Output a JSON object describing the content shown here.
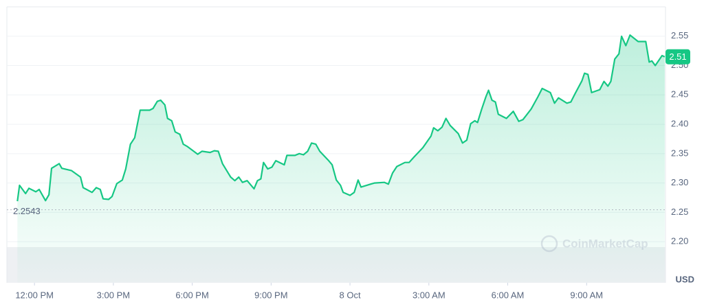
{
  "chart_data": {
    "type": "line",
    "color": "#16c784",
    "currency": "USD",
    "watermark": "CoinMarketCap",
    "reference_line": 2.2543,
    "current_price_label": "2.51",
    "x": [
      -0.65,
      -0.57,
      -0.34,
      -0.21,
      0.05,
      0.18,
      0.42,
      0.55,
      0.65,
      0.94,
      1.04,
      1.41,
      1.75,
      1.85,
      2.19,
      2.35,
      2.5,
      2.61,
      2.82,
      2.95,
      3.13,
      3.34,
      3.47,
      3.65,
      3.81,
      4.02,
      4.38,
      4.51,
      4.67,
      4.8,
      4.96,
      5.06,
      5.22,
      5.35,
      5.53,
      5.66,
      5.82,
      6.0,
      6.21,
      6.37,
      6.68,
      6.84,
      6.99,
      7.15,
      7.46,
      7.62,
      7.77,
      7.91,
      8.09,
      8.35,
      8.48,
      8.61,
      8.71,
      8.87,
      9.03,
      9.18,
      9.5,
      9.6,
      9.91,
      10.07,
      10.23,
      10.39,
      10.54,
      10.7,
      10.85,
      11.17,
      11.32,
      11.48,
      11.64,
      11.74,
      12.0,
      12.16,
      12.31,
      12.42,
      12.78,
      12.94,
      13.31,
      13.46,
      13.62,
      13.78,
      14.09,
      14.25,
      14.45,
      14.77,
      15.08,
      15.18,
      15.34,
      15.5,
      15.65,
      15.81,
      16.12,
      16.28,
      16.44,
      16.59,
      16.75,
      16.85,
      17.01,
      17.17,
      17.27,
      17.4,
      17.53,
      17.64,
      17.95,
      18.21,
      18.42,
      18.58,
      18.89,
      19.15,
      19.31,
      19.62,
      19.78,
      19.93,
      20.25,
      20.4,
      20.56,
      20.82,
      20.92,
      21.05,
      21.19,
      21.5,
      21.66,
      21.81,
      21.92,
      22.07,
      22.23,
      22.33,
      22.49,
      22.65,
      22.96,
      23.25,
      23.38,
      23.48,
      23.61,
      23.87,
      23.97
    ],
    "values": [
      2.269,
      2.296,
      2.282,
      2.291,
      2.285,
      2.289,
      2.27,
      2.28,
      2.325,
      2.333,
      2.325,
      2.321,
      2.31,
      2.292,
      2.284,
      2.292,
      2.289,
      2.273,
      2.272,
      2.277,
      2.299,
      2.305,
      2.324,
      2.366,
      2.377,
      2.424,
      2.424,
      2.427,
      2.439,
      2.441,
      2.433,
      2.41,
      2.406,
      2.387,
      2.383,
      2.366,
      2.362,
      2.356,
      2.349,
      2.354,
      2.352,
      2.355,
      2.354,
      2.333,
      2.31,
      2.304,
      2.31,
      2.301,
      2.304,
      2.29,
      2.304,
      2.307,
      2.335,
      2.324,
      2.327,
      2.338,
      2.331,
      2.347,
      2.347,
      2.35,
      2.348,
      2.354,
      2.368,
      2.366,
      2.354,
      2.339,
      2.331,
      2.305,
      2.296,
      2.284,
      2.279,
      2.284,
      2.305,
      2.293,
      2.298,
      2.3,
      2.301,
      2.298,
      2.317,
      2.328,
      2.335,
      2.335,
      2.345,
      2.36,
      2.38,
      2.394,
      2.389,
      2.395,
      2.41,
      2.398,
      2.384,
      2.368,
      2.373,
      2.401,
      2.406,
      2.403,
      2.426,
      2.447,
      2.458,
      2.441,
      2.438,
      2.417,
      2.41,
      2.422,
      2.405,
      2.408,
      2.426,
      2.447,
      2.461,
      2.454,
      2.436,
      2.445,
      2.436,
      2.438,
      2.452,
      2.474,
      2.487,
      2.485,
      2.454,
      2.459,
      2.473,
      2.465,
      2.473,
      2.511,
      2.52,
      2.55,
      2.534,
      2.552,
      2.541,
      2.541,
      2.506,
      2.508,
      2.5,
      2.517,
      2.515
    ],
    "xlim": [
      -1.05,
      24.0
    ],
    "xticks": [
      {
        "value": 0,
        "label": "12:00 PM"
      },
      {
        "value": 3,
        "label": "3:00 PM"
      },
      {
        "value": 6,
        "label": "6:00 PM"
      },
      {
        "value": 9,
        "label": "9:00 PM"
      },
      {
        "value": 12,
        "label": "8 Oct"
      },
      {
        "value": 15,
        "label": "3:00 AM"
      },
      {
        "value": 18,
        "label": "6:00 AM"
      },
      {
        "value": 21,
        "label": "9:00 AM"
      }
    ],
    "ylim": [
      2.13,
      2.6
    ],
    "yticks": [
      {
        "value": 2.2,
        "label": "2.20"
      },
      2.25,
      {
        "value": 2.3,
        "label": "2.30"
      },
      2.35,
      {
        "value": 2.4,
        "label": "2.40"
      },
      2.45,
      {
        "value": 2.5,
        "label": "2.50"
      },
      2.55
    ],
    "grid": true
  }
}
